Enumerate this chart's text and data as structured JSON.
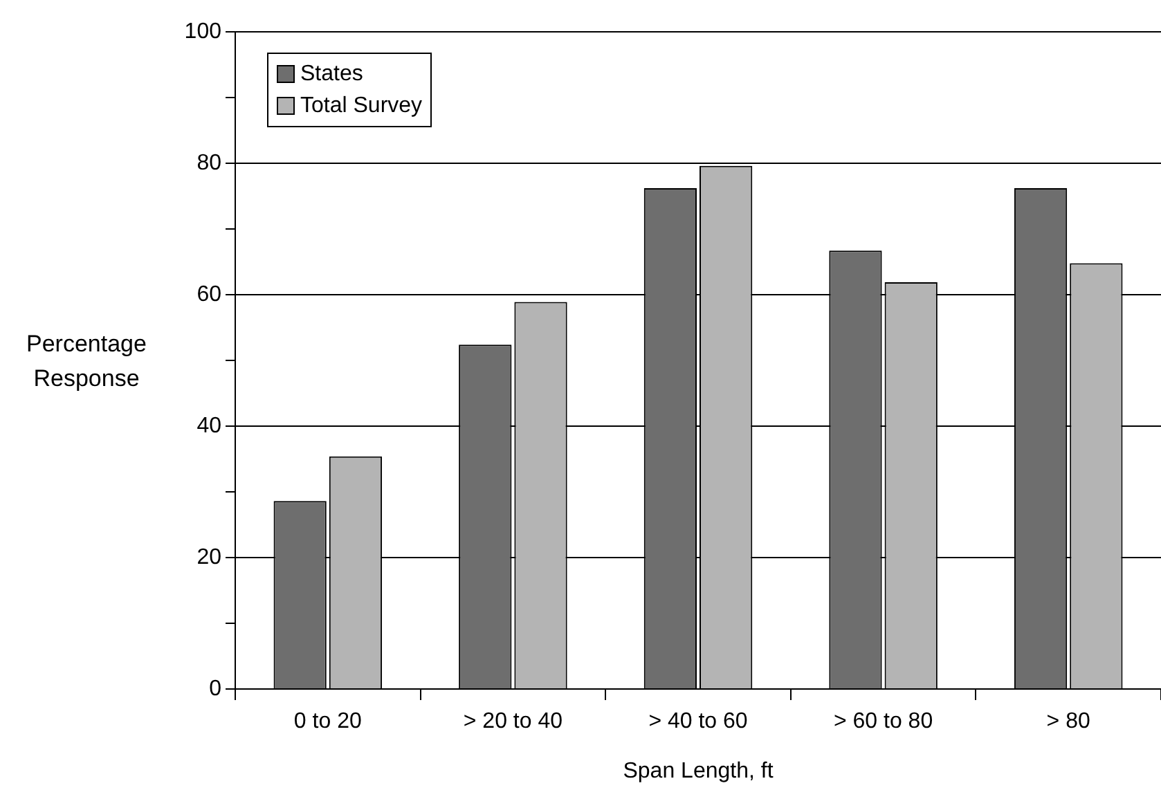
{
  "chart_data": {
    "type": "bar",
    "xlabel": "Span Length, ft",
    "ylabel": "Percentage Response",
    "categories": [
      "0 to 20",
      "> 20 to 40",
      "> 40 to 60",
      "> 60 to 80",
      "> 80"
    ],
    "series": [
      {
        "name": "States",
        "color": "#6e6e6e",
        "values": [
          28.6,
          52.4,
          76.2,
          66.7,
          76.2
        ]
      },
      {
        "name": "Total Survey",
        "color": "#b4b4b4",
        "values": [
          35.4,
          58.9,
          79.6,
          61.9,
          64.8
        ]
      }
    ],
    "ylim": [
      0,
      100
    ],
    "yticks": [
      0,
      {
        "value": 10,
        "label": null
      },
      20,
      {
        "value": 30,
        "label": null
      },
      40,
      {
        "value": 50,
        "label": null
      },
      60,
      {
        "value": 70,
        "label": null
      },
      80,
      {
        "value": 90,
        "label": null
      },
      100
    ],
    "grid": "y",
    "legend": "top left"
  }
}
